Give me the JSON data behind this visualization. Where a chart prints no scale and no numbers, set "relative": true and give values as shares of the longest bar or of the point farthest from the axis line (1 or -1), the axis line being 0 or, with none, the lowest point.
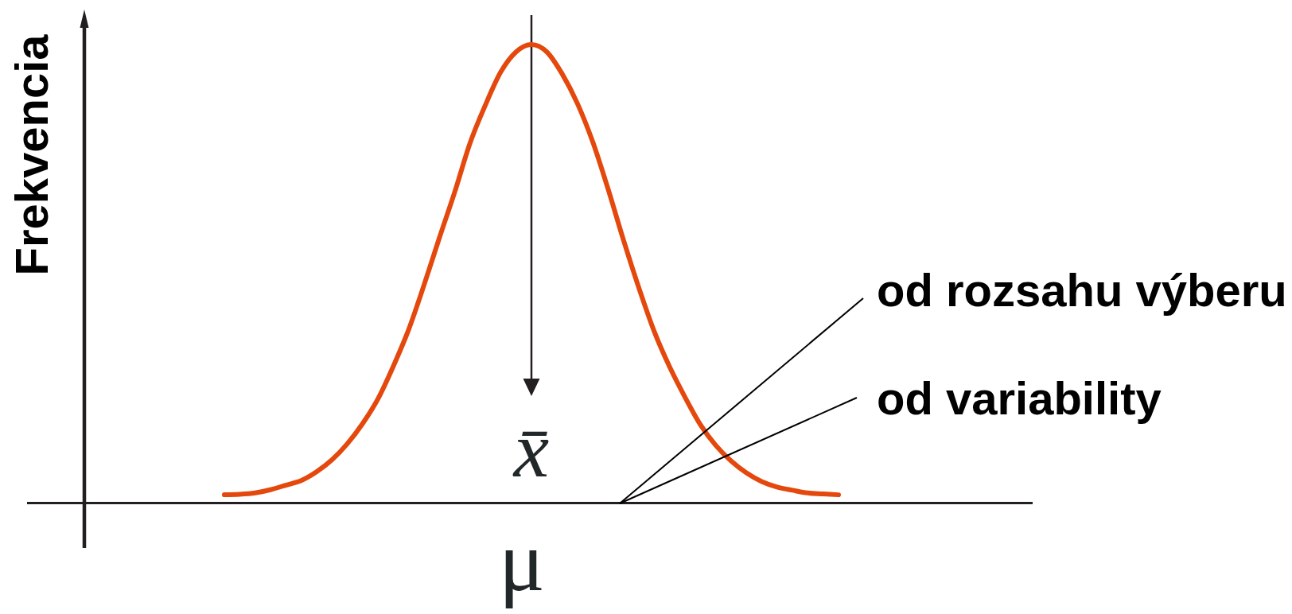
{
  "chart_data": {
    "type": "line",
    "ylabel": "Frekvencia",
    "relative": true,
    "color": "#e4480c",
    "line_style": "solid",
    "categories": [
      null,
      null,
      null,
      null,
      null,
      null,
      null,
      null,
      null,
      null,
      null,
      null,
      null,
      null,
      null,
      null,
      null,
      null,
      null,
      null,
      null,
      null,
      null,
      null,
      null,
      null,
      null,
      null,
      null,
      null,
      null,
      null,
      null,
      null,
      null,
      null,
      null,
      null,
      null,
      null,
      null
    ],
    "values": [
      0.018,
      0.019,
      0.022,
      0.029,
      0.039,
      0.049,
      0.068,
      0.094,
      0.129,
      0.173,
      0.227,
      0.298,
      0.378,
      0.475,
      0.578,
      0.678,
      0.785,
      0.868,
      0.94,
      0.984,
      1,
      0.984,
      0.936,
      0.871,
      0.787,
      0.684,
      0.573,
      0.469,
      0.374,
      0.297,
      0.231,
      0.171,
      0.126,
      0.092,
      0.066,
      0.047,
      0.035,
      0.028,
      0.022,
      0.02,
      0.018
    ],
    "annotations": [
      "x̄",
      "μ",
      "od rozsahu výberu",
      "od variability"
    ]
  }
}
